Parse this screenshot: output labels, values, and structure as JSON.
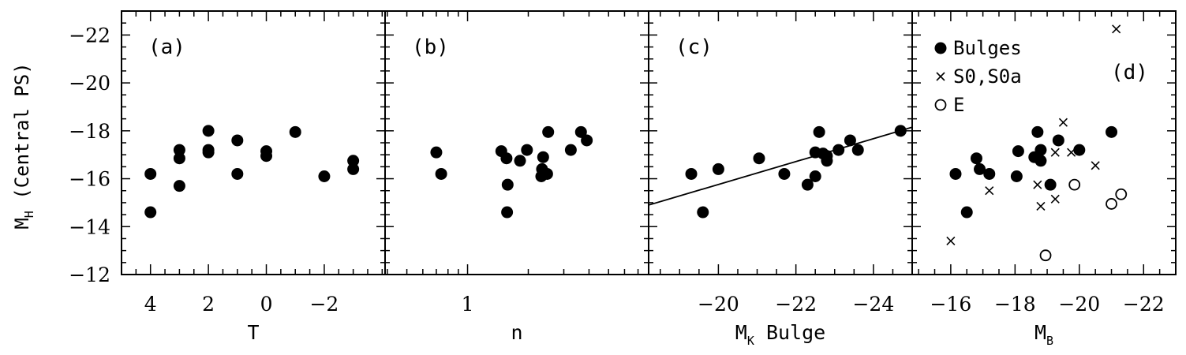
{
  "figure": {
    "ylabel_main": "M",
    "ylabel_sub": "H",
    "ylabel_rest": "(Central PS)",
    "ylim": [
      -12,
      -23
    ],
    "yticks": [
      -12,
      -14,
      -16,
      -18,
      -20,
      -22
    ]
  },
  "chart_data": [
    {
      "type": "scatter",
      "panel_label": "(a)",
      "xlabel": "T",
      "xlabel_sub": "",
      "xlabel_rest": "",
      "xlim": [
        5,
        -4.1
      ],
      "xticks": [
        4,
        2,
        0,
        -2
      ],
      "x_scale": "linear",
      "series": [
        {
          "marker": "filled-circle",
          "points": [
            [
              4,
              -16.2
            ],
            [
              4,
              -14.6
            ],
            [
              3,
              -17.2
            ],
            [
              3,
              -16.85
            ],
            [
              3,
              -15.7
            ],
            [
              2,
              -18.0
            ],
            [
              2,
              -17.2
            ],
            [
              2,
              -17.1
            ],
            [
              1,
              -17.6
            ],
            [
              1,
              -16.2
            ],
            [
              0,
              -17.15
            ],
            [
              0,
              -16.95
            ],
            [
              -1,
              -17.95
            ],
            [
              -2,
              -16.1
            ],
            [
              -3,
              -16.75
            ],
            [
              -3,
              -16.4
            ]
          ]
        }
      ]
    },
    {
      "type": "scatter",
      "panel_label": "(b)",
      "xlabel": "n",
      "xlabel_sub": "",
      "xlabel_rest": "",
      "xlim": [
        0.39,
        7.9
      ],
      "xticks": [
        1
      ],
      "x_scale": "log",
      "series": [
        {
          "marker": "filled-circle",
          "points": [
            [
              0.7,
              -17.1
            ],
            [
              0.74,
              -16.2
            ],
            [
              1.47,
              -17.15
            ],
            [
              1.56,
              -16.85
            ],
            [
              1.58,
              -15.75
            ],
            [
              1.57,
              -14.6
            ],
            [
              1.82,
              -16.75
            ],
            [
              1.97,
              -17.2
            ],
            [
              2.32,
              -16.1
            ],
            [
              2.34,
              -16.4
            ],
            [
              2.37,
              -16.9
            ],
            [
              2.48,
              -16.2
            ],
            [
              2.51,
              -17.95
            ],
            [
              3.25,
              -17.2
            ],
            [
              3.65,
              -17.95
            ],
            [
              3.9,
              -17.6
            ]
          ]
        }
      ]
    },
    {
      "type": "scatter",
      "panel_label": "(c)",
      "xlabel": "M",
      "xlabel_sub": "K",
      "xlabel_rest": "Bulge",
      "xlim": [
        -18.2,
        -25
      ],
      "xticks": [
        -20,
        -22,
        -24
      ],
      "x_scale": "linear",
      "series": [
        {
          "marker": "filled-circle",
          "points": [
            [
              -19.3,
              -16.2
            ],
            [
              -19.6,
              -14.6
            ],
            [
              -20.0,
              -16.4
            ],
            [
              -21.05,
              -16.85
            ],
            [
              -21.7,
              -16.2
            ],
            [
              -22.3,
              -15.75
            ],
            [
              -22.5,
              -16.1
            ],
            [
              -22.5,
              -17.1
            ],
            [
              -22.6,
              -17.95
            ],
            [
              -22.7,
              -17.05
            ],
            [
              -22.8,
              -16.95
            ],
            [
              -22.8,
              -16.75
            ],
            [
              -23.1,
              -17.2
            ],
            [
              -23.4,
              -17.6
            ],
            [
              -23.6,
              -17.2
            ],
            [
              -24.7,
              -18.0
            ]
          ]
        }
      ],
      "fit_line": [
        [
          -18.2,
          -14.9
        ],
        [
          -25,
          -18.15
        ]
      ]
    },
    {
      "type": "scatter",
      "panel_label": "(d)",
      "xlabel": "M",
      "xlabel_sub": "B",
      "xlabel_rest": "",
      "xlim": [
        -14.8,
        -23
      ],
      "xticks": [
        -16,
        -18,
        -20,
        -22
      ],
      "x_scale": "linear",
      "legend": [
        {
          "marker": "filled-circle",
          "label": "Bulges"
        },
        {
          "marker": "cross",
          "label": "S0,S0a"
        },
        {
          "marker": "open-circle",
          "label": "E"
        }
      ],
      "legend_position": "top-left",
      "series": [
        {
          "name": "Bulges",
          "marker": "filled-circle",
          "points": [
            [
              -16.15,
              -16.2
            ],
            [
              -16.5,
              -14.6
            ],
            [
              -16.8,
              -16.85
            ],
            [
              -16.9,
              -16.4
            ],
            [
              -17.2,
              -16.2
            ],
            [
              -18.05,
              -16.1
            ],
            [
              -18.1,
              -17.15
            ],
            [
              -18.6,
              -16.9
            ],
            [
              -18.7,
              -17.95
            ],
            [
              -18.8,
              -17.2
            ],
            [
              -18.8,
              -16.75
            ],
            [
              -19.1,
              -15.75
            ],
            [
              -19.35,
              -17.6
            ],
            [
              -20.0,
              -17.2
            ],
            [
              -21.0,
              -17.95
            ]
          ]
        },
        {
          "name": "S0,S0a",
          "marker": "cross",
          "points": [
            [
              -16.0,
              -13.4
            ],
            [
              -17.2,
              -15.5
            ],
            [
              -18.7,
              -15.75
            ],
            [
              -18.8,
              -14.85
            ],
            [
              -19.25,
              -15.15
            ],
            [
              -19.25,
              -17.1
            ],
            [
              -19.5,
              -18.35
            ],
            [
              -19.75,
              -17.1
            ],
            [
              -20.5,
              -16.55
            ],
            [
              -21.15,
              -22.25
            ]
          ]
        },
        {
          "name": "E",
          "marker": "open-circle",
          "points": [
            [
              -18.95,
              -12.8
            ],
            [
              -19.85,
              -15.75
            ],
            [
              -21.0,
              -14.95
            ],
            [
              -21.3,
              -15.35
            ]
          ]
        }
      ]
    }
  ]
}
